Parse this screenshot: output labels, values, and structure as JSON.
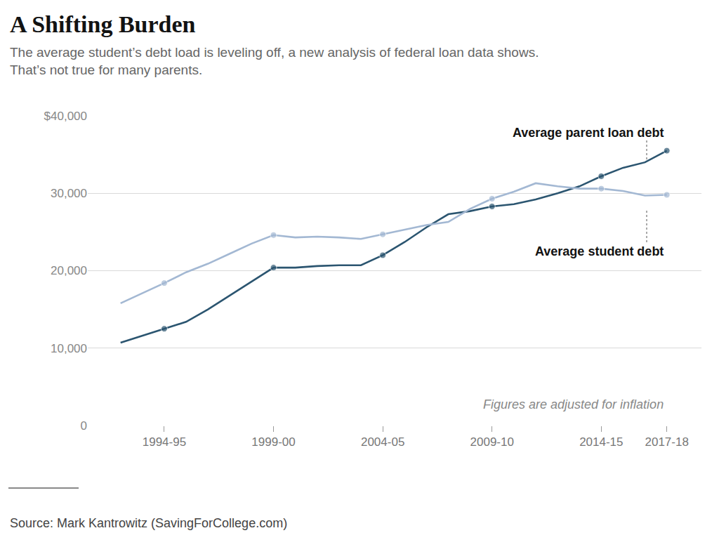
{
  "chart_data": {
    "type": "line",
    "title": "A Shifting Burden",
    "subtitle": [
      "The average student’s debt load is leveling off, a new analysis of federal loan data shows.",
      "That’s not true for many parents."
    ],
    "categories": [
      null,
      null,
      "1994-95",
      null,
      null,
      null,
      null,
      "1999-00",
      null,
      null,
      null,
      null,
      "2004-05",
      null,
      null,
      null,
      null,
      "2009-10",
      null,
      null,
      null,
      null,
      "2014-15",
      null,
      null,
      "2017-18"
    ],
    "series": [
      {
        "name": "Average parent loan debt",
        "color": "#2b5570",
        "marker": "circle",
        "values": [
          10700,
          11600,
          12500,
          13400,
          15000,
          16800,
          18600,
          20400,
          20400,
          20600,
          20700,
          20700,
          22000,
          23700,
          25600,
          27300,
          27700,
          28300,
          28600,
          29200,
          30000,
          30900,
          32200,
          33300,
          34000,
          35500
        ]
      },
      {
        "name": "Average student debt",
        "color": "#a3b8d3",
        "marker": "circle",
        "values": [
          15800,
          17100,
          18400,
          19800,
          20900,
          22200,
          23500,
          24600,
          24300,
          24400,
          24300,
          24100,
          24700,
          25300,
          25900,
          26300,
          28000,
          29300,
          30200,
          31300,
          30900,
          30600,
          30600,
          30300,
          29700,
          29800
        ]
      }
    ],
    "ylim": [
      0,
      40000
    ],
    "yticks": [
      0,
      {
        "value": 10000,
        "label": "10,000"
      },
      {
        "value": 20000,
        "label": "20,000"
      },
      {
        "value": 30000,
        "label": "30,000"
      },
      {
        "value": 40000,
        "label": "$40,000"
      }
    ],
    "grid": true,
    "annotations": [
      "Figures are adjusted for inflation"
    ],
    "source": "Source: Mark Kantrowitz (SavingForCollege.com)"
  }
}
